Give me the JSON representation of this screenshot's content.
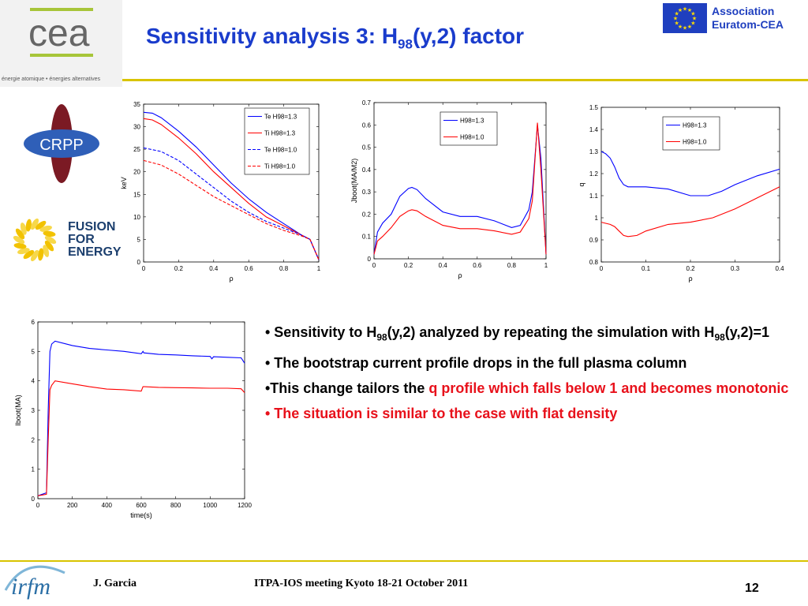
{
  "header": {
    "title_main": "Sensitivity analysis 3: H",
    "title_sub": "98",
    "title_end": "(y,2) factor",
    "cea_tagline": "énergie atomique • énergies alternatives",
    "association": [
      "Association",
      "Euratom-CEA"
    ]
  },
  "logos": {
    "crpp": "CRPP",
    "ffe": [
      "FUSION",
      "FOR",
      "ENERGY"
    ],
    "irfm": "irfm"
  },
  "bullets": [
    {
      "parts": [
        {
          "t": "• Sensitivity to H"
        },
        {
          "t": "98",
          "sub": true
        },
        {
          "t": "(y,2)  analyzed by repeating the simulation with H"
        },
        {
          "t": "98",
          "sub": true
        },
        {
          "t": "(y,2)=1"
        }
      ]
    },
    {
      "parts": [
        {
          "t": "• The bootstrap current profile drops in the full plasma column"
        }
      ]
    },
    {
      "parts": [
        {
          "t": "•This change tailors the "
        },
        {
          "t": "q profile which falls below 1 and becomes monotonic",
          "red": true
        }
      ]
    },
    {
      "parts": [
        {
          "t": "• The situation is similar to the case with flat density",
          "red": true
        }
      ]
    }
  ],
  "footer": {
    "author": "J. Garcia",
    "meeting": "ITPA-IOS meeting Kyoto 18-21 October 2011",
    "page": "12"
  },
  "colors": {
    "blue": "#0000ff",
    "red": "#ff0000",
    "title": "#1a3ccc",
    "accent": "#e8111b"
  },
  "chart_data": [
    {
      "type": "line",
      "xlabel": "ρ",
      "ylabel": "keV",
      "xlim": [
        0,
        1
      ],
      "ylim": [
        0,
        35
      ],
      "xticks": [
        "0",
        "0.2",
        "0.4",
        "0.6",
        "0.8",
        "1"
      ],
      "yticks": [
        "0",
        "5",
        "10",
        "15",
        "20",
        "25",
        "30",
        "35"
      ],
      "legend": "top-right",
      "series": [
        {
          "name": "Te H98=1.3",
          "color": "#0000ff",
          "dash": false,
          "x": [
            0,
            0.05,
            0.1,
            0.2,
            0.3,
            0.4,
            0.5,
            0.6,
            0.7,
            0.8,
            0.9,
            0.95,
            1.0
          ],
          "y": [
            33.2,
            33,
            32,
            29,
            25.5,
            21.5,
            17.5,
            14,
            11,
            8.5,
            6,
            5,
            0.5
          ]
        },
        {
          "name": "Ti H98=1.3",
          "color": "#ff0000",
          "dash": false,
          "x": [
            0,
            0.05,
            0.1,
            0.2,
            0.3,
            0.4,
            0.5,
            0.6,
            0.7,
            0.8,
            0.9,
            0.95,
            1.0
          ],
          "y": [
            31.8,
            31.5,
            30.5,
            27.5,
            24,
            20,
            16.5,
            13,
            10,
            8,
            6,
            5,
            0.5
          ]
        },
        {
          "name": "Te H98=1.0",
          "color": "#0000ff",
          "dash": true,
          "x": [
            0,
            0.1,
            0.2,
            0.3,
            0.4,
            0.5,
            0.6,
            0.7,
            0.8,
            0.9,
            0.95,
            1.0
          ],
          "y": [
            25.3,
            24.5,
            22.5,
            19.5,
            16.5,
            13.5,
            11,
            9,
            7.5,
            6,
            5,
            0.5
          ]
        },
        {
          "name": "Ti H98=1.0",
          "color": "#ff0000",
          "dash": true,
          "x": [
            0,
            0.1,
            0.2,
            0.3,
            0.4,
            0.5,
            0.6,
            0.7,
            0.8,
            0.9,
            0.95,
            1.0
          ],
          "y": [
            22.5,
            21.5,
            19.5,
            17,
            14.5,
            12.5,
            10.5,
            8.5,
            7,
            5.8,
            5,
            0.5
          ]
        }
      ]
    },
    {
      "type": "line",
      "xlabel": "ρ",
      "ylabel": "Jboot(MA/M2)",
      "xlim": [
        0,
        1
      ],
      "ylim": [
        0,
        0.7
      ],
      "xticks": [
        "0",
        "0.2",
        "0.4",
        "0.6",
        "0.8",
        "1"
      ],
      "yticks": [
        "0",
        "0.1",
        "0.2",
        "0.3",
        "0.4",
        "0.5",
        "0.6",
        "0.7"
      ],
      "legend": "top-center",
      "series": [
        {
          "name": "H98=1.3",
          "color": "#0000ff",
          "dash": false,
          "x": [
            0,
            0.02,
            0.05,
            0.1,
            0.15,
            0.2,
            0.22,
            0.25,
            0.3,
            0.4,
            0.5,
            0.6,
            0.7,
            0.8,
            0.85,
            0.9,
            0.92,
            0.95,
            0.97,
            1.0
          ],
          "y": [
            0.02,
            0.12,
            0.16,
            0.2,
            0.28,
            0.315,
            0.32,
            0.31,
            0.27,
            0.21,
            0.19,
            0.19,
            0.17,
            0.14,
            0.15,
            0.22,
            0.3,
            0.6,
            0.45,
            0.02
          ]
        },
        {
          "name": "H98=1.0",
          "color": "#ff0000",
          "dash": false,
          "x": [
            0,
            0.02,
            0.05,
            0.1,
            0.15,
            0.2,
            0.22,
            0.25,
            0.3,
            0.4,
            0.5,
            0.6,
            0.7,
            0.8,
            0.85,
            0.9,
            0.92,
            0.95,
            0.97,
            1.0
          ],
          "y": [
            0.02,
            0.08,
            0.1,
            0.14,
            0.19,
            0.215,
            0.22,
            0.215,
            0.19,
            0.15,
            0.135,
            0.135,
            0.125,
            0.11,
            0.12,
            0.18,
            0.26,
            0.61,
            0.4,
            0.02
          ]
        }
      ]
    },
    {
      "type": "line",
      "xlabel": "ρ",
      "ylabel": "q",
      "xlim": [
        0,
        0.4
      ],
      "ylim": [
        0.8,
        1.5
      ],
      "xticks": [
        "0",
        "0.1",
        "0.2",
        "0.3",
        "0.4"
      ],
      "yticks": [
        "0.8",
        "0.9",
        "1",
        "1.1",
        "1.2",
        "1.3",
        "1.4",
        "1.5"
      ],
      "legend": "top-right",
      "series": [
        {
          "name": "H98=1.3",
          "color": "#0000ff",
          "dash": false,
          "x": [
            0,
            0.01,
            0.02,
            0.03,
            0.04,
            0.05,
            0.06,
            0.08,
            0.1,
            0.15,
            0.2,
            0.24,
            0.27,
            0.3,
            0.35,
            0.4
          ],
          "y": [
            1.3,
            1.29,
            1.27,
            1.23,
            1.18,
            1.15,
            1.14,
            1.14,
            1.14,
            1.13,
            1.1,
            1.1,
            1.12,
            1.15,
            1.19,
            1.22
          ]
        },
        {
          "name": "H98=1.0",
          "color": "#ff0000",
          "dash": false,
          "x": [
            0,
            0.01,
            0.02,
            0.03,
            0.04,
            0.05,
            0.06,
            0.08,
            0.1,
            0.15,
            0.2,
            0.25,
            0.3,
            0.35,
            0.4
          ],
          "y": [
            0.98,
            0.975,
            0.97,
            0.96,
            0.94,
            0.92,
            0.915,
            0.92,
            0.94,
            0.97,
            0.98,
            1.0,
            1.04,
            1.09,
            1.14
          ]
        }
      ]
    },
    {
      "type": "line",
      "xlabel": "time(s)",
      "ylabel": "Iboot(MA)",
      "xlim": [
        0,
        1200
      ],
      "ylim": [
        0,
        6
      ],
      "xticks": [
        "0",
        "200",
        "400",
        "600",
        "800",
        "1000",
        "1200"
      ],
      "yticks": [
        "0",
        "1",
        "2",
        "3",
        "4",
        "5",
        "6"
      ],
      "legend": "none",
      "series": [
        {
          "color": "#0000ff",
          "dash": false,
          "x": [
            0,
            50,
            60,
            70,
            80,
            100,
            200,
            300,
            400,
            500,
            600,
            610,
            615,
            700,
            800,
            900,
            1000,
            1010,
            1020,
            1100,
            1180,
            1200
          ],
          "y": [
            0.1,
            0.2,
            3.0,
            5.0,
            5.25,
            5.35,
            5.2,
            5.1,
            5.05,
            5.0,
            4.92,
            5.0,
            4.95,
            4.9,
            4.88,
            4.85,
            4.83,
            4.75,
            4.82,
            4.8,
            4.78,
            4.6
          ]
        },
        {
          "color": "#ff0000",
          "dash": false,
          "x": [
            0,
            50,
            60,
            70,
            80,
            100,
            200,
            300,
            400,
            500,
            600,
            610,
            620,
            700,
            800,
            900,
            1000,
            1100,
            1180,
            1200
          ],
          "y": [
            0.1,
            0.15,
            2.0,
            3.7,
            3.85,
            4.0,
            3.9,
            3.8,
            3.72,
            3.7,
            3.65,
            3.8,
            3.8,
            3.78,
            3.77,
            3.76,
            3.75,
            3.75,
            3.73,
            3.6
          ]
        }
      ]
    }
  ]
}
